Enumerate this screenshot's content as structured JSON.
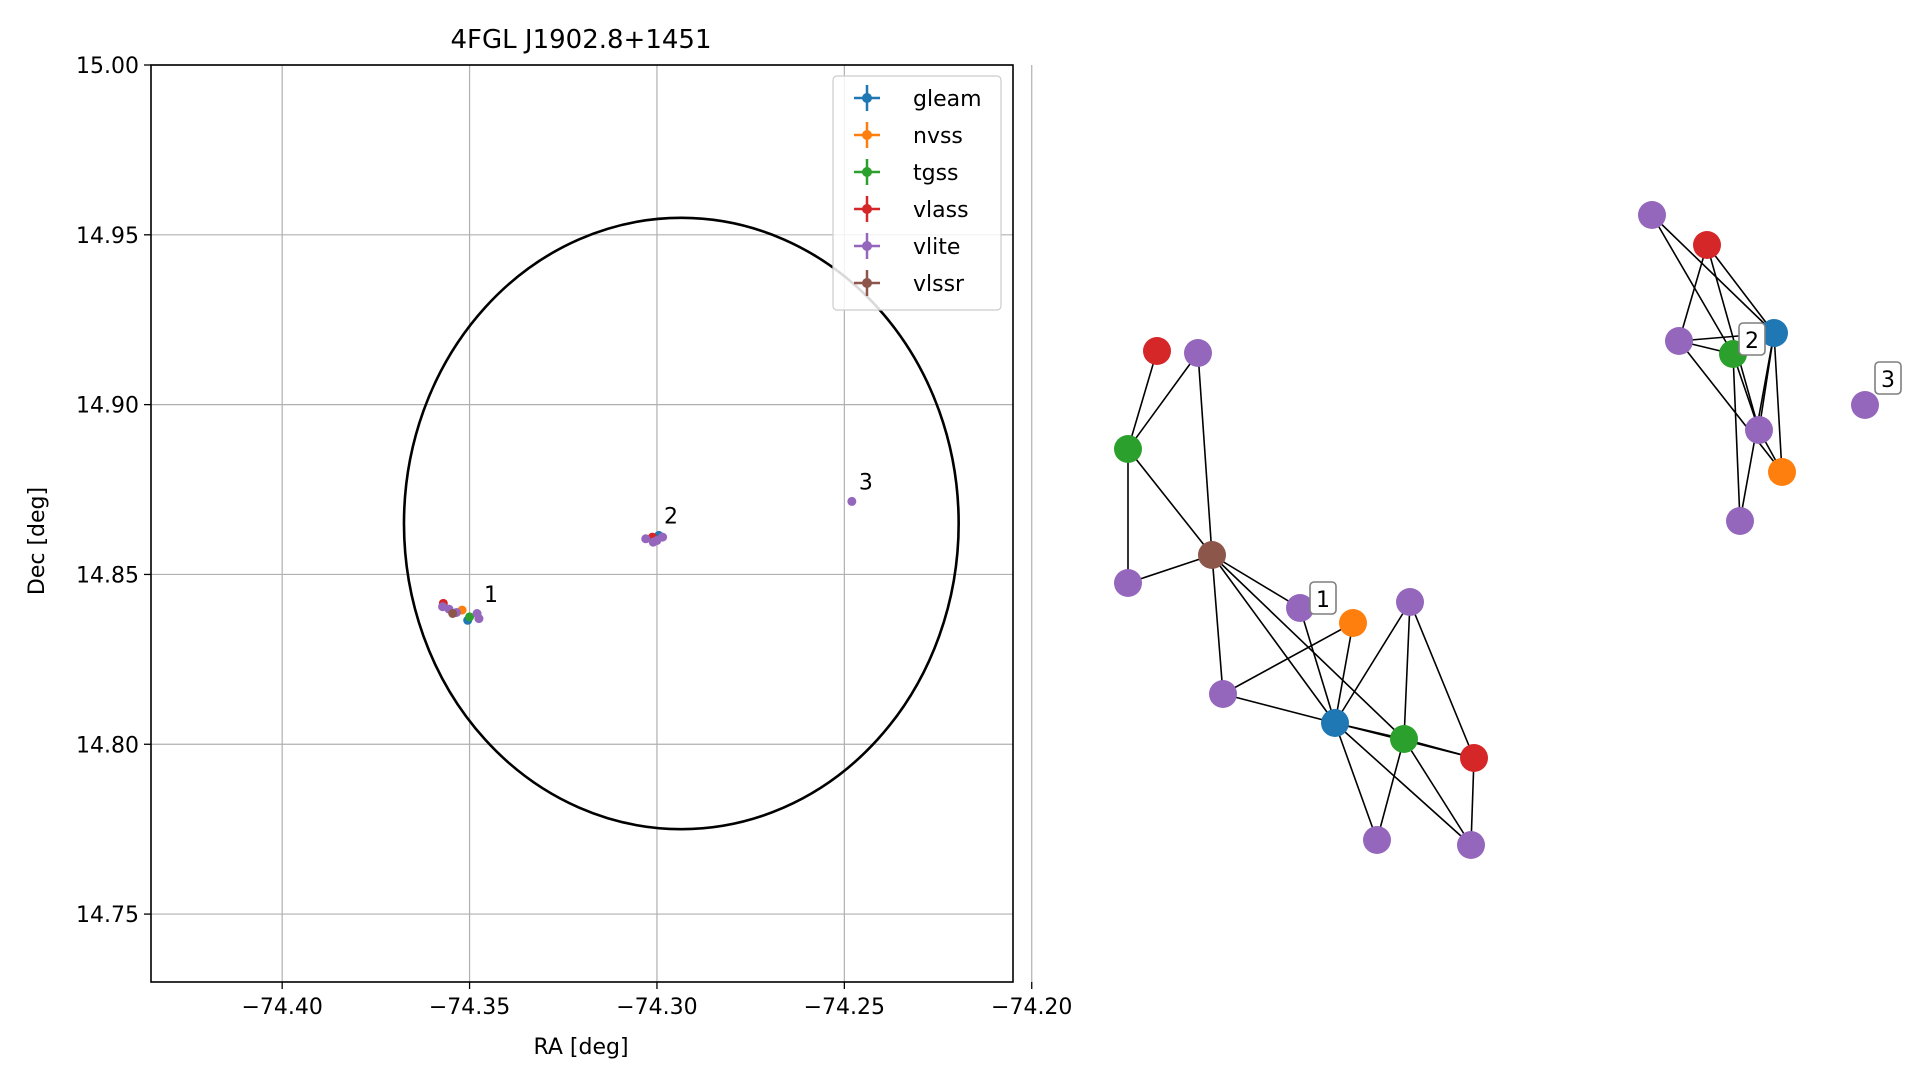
{
  "chart_data": [
    {
      "type": "scatter",
      "title": "4FGL J1902.8+1451",
      "xlabel": "RA [deg]",
      "ylabel": "Dec [deg]",
      "xlim": [
        -74.435,
        -74.205
      ],
      "ylim": [
        14.73,
        15.0
      ],
      "xticks": [
        -74.4,
        -74.35,
        -74.3,
        -74.25,
        -74.2
      ],
      "xtick_labels": [
        "−74.40",
        "−74.35",
        "−74.30",
        "−74.25",
        "−74.20"
      ],
      "yticks": [
        14.75,
        14.8,
        14.85,
        14.9,
        14.95,
        15.0
      ],
      "ytick_labels": [
        "14.75",
        "14.80",
        "14.85",
        "14.90",
        "14.95",
        "15.00"
      ],
      "grid": true,
      "legend_position": "top-right",
      "ellipse": {
        "center": [
          -74.2935,
          14.865
        ],
        "semi_ra": 0.074,
        "semi_dec": 0.09
      },
      "series": [
        {
          "name": "gleam",
          "color": "#1f77b4",
          "points": [
            [
              -74.3505,
              14.8365
            ],
            [
              -74.2995,
              14.8615
            ]
          ]
        },
        {
          "name": "nvss",
          "color": "#ff7f0e",
          "points": [
            [
              -74.352,
              14.8395
            ],
            [
              -74.301,
              14.8605
            ]
          ]
        },
        {
          "name": "tgss",
          "color": "#2ca02c",
          "points": [
            [
              -74.35,
              14.8375
            ],
            [
              -74.3005,
              14.86
            ]
          ]
        },
        {
          "name": "vlass",
          "color": "#d62728",
          "points": [
            [
              -74.357,
              14.8415
            ],
            [
              -74.3012,
              14.861
            ]
          ]
        },
        {
          "name": "vlite",
          "color": "#9467bd",
          "points": [
            [
              -74.3572,
              14.8405
            ],
            [
              -74.3555,
              14.8398
            ],
            [
              -74.348,
              14.8385
            ],
            [
              -74.3475,
              14.837
            ],
            [
              -74.3535,
              14.8388
            ],
            [
              -74.303,
              14.8605
            ],
            [
              -74.301,
              14.8595
            ],
            [
              -74.2985,
              14.861
            ],
            [
              -74.3,
              14.86
            ],
            [
              -74.248,
              14.8715
            ]
          ]
        },
        {
          "name": "vlssr",
          "color": "#8c564b",
          "points": [
            [
              -74.3545,
              14.8385
            ]
          ]
        }
      ],
      "annotations": [
        {
          "text": "1",
          "x": -74.348,
          "y": 14.839
        },
        {
          "text": "2",
          "x": -74.3,
          "y": 14.862
        },
        {
          "text": "3",
          "x": -74.248,
          "y": 14.872
        }
      ]
    },
    {
      "type": "network",
      "labels": [
        {
          "text": "1",
          "node": 3
        },
        {
          "text": "2",
          "node": 19
        },
        {
          "text": "3",
          "node": 24
        }
      ]
    }
  ]
}
